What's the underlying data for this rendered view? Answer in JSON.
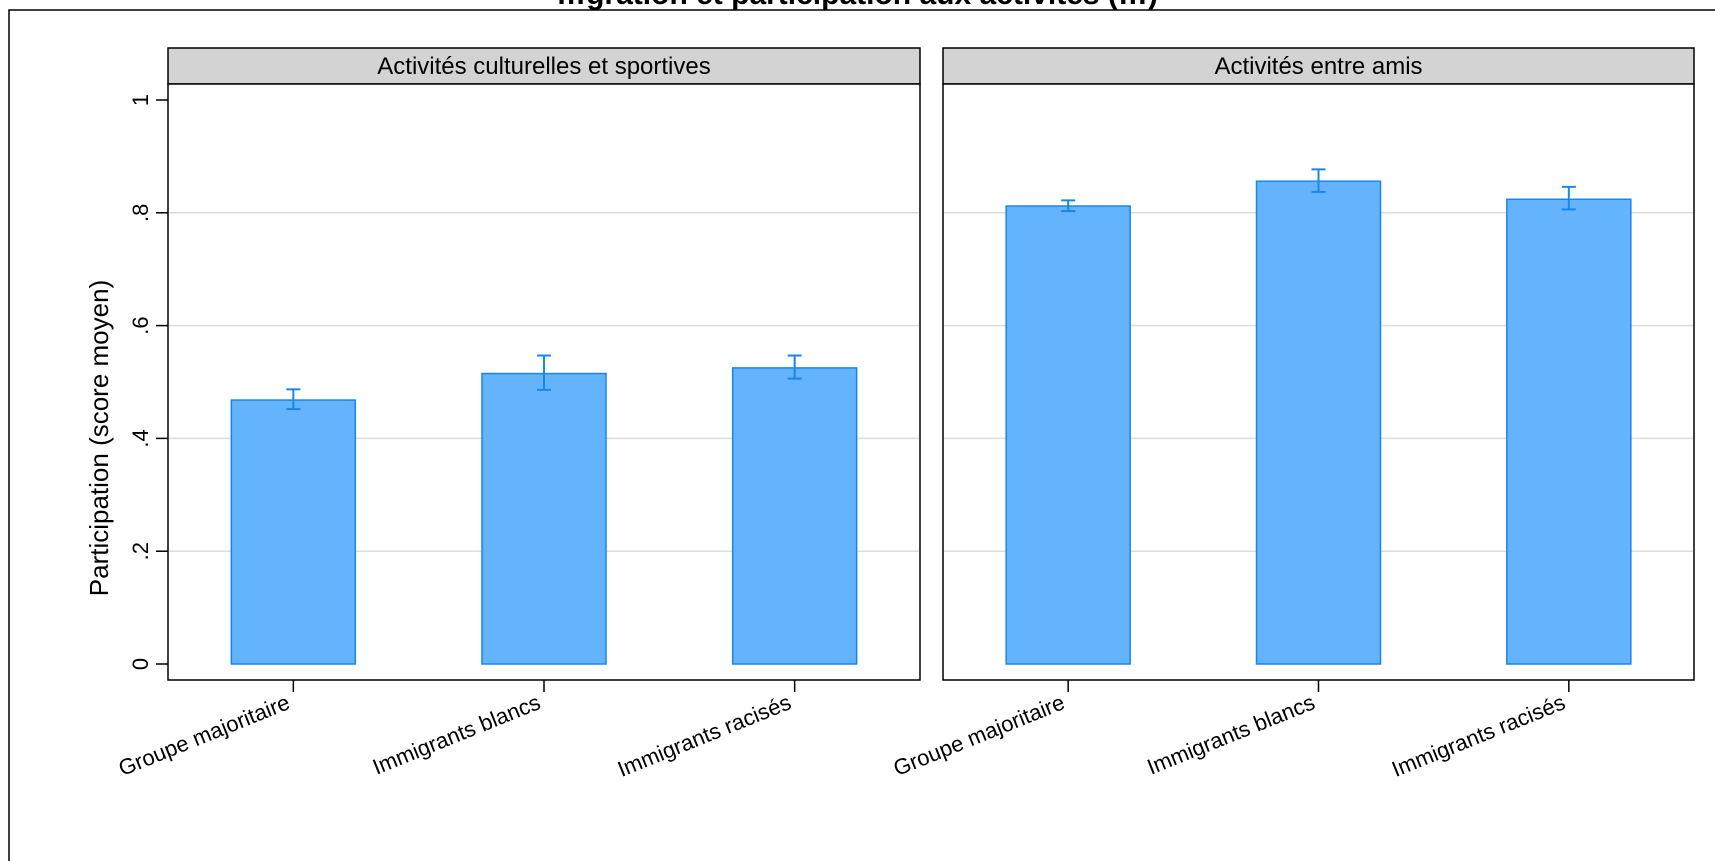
{
  "chart_data": {
    "type": "bar",
    "title": "…gration et participation aux activités (…)",
    "ylabel": "Participation (score moyen)",
    "xlabel": "",
    "ylim": [
      0,
      1.0
    ],
    "yticks": [
      0,
      0.2,
      0.4,
      0.6,
      0.8,
      1
    ],
    "ytick_labels": [
      "0",
      ".2",
      ".4",
      ".6",
      ".8",
      "1"
    ],
    "grid": true,
    "legend": "none",
    "colors": {
      "bar_fill": "#63b3fd",
      "bar_stroke": "#1a86e8",
      "error_bar": "#1a86e8",
      "strip_fill": "#d3d3d3",
      "grid": "#dcdcdc"
    },
    "categories": [
      "Groupe majoritaire",
      "Immigrants blancs",
      "Immigrants racisés"
    ],
    "panels": [
      {
        "name": "Activités culturelles et sportives",
        "values": [
          0.468,
          0.515,
          0.525
        ],
        "ci_low": [
          0.452,
          0.486,
          0.506
        ],
        "ci_high": [
          0.487,
          0.547,
          0.547
        ]
      },
      {
        "name": "Activités entre amis",
        "values": [
          0.812,
          0.856,
          0.824
        ],
        "ci_low": [
          0.803,
          0.837,
          0.806
        ],
        "ci_high": [
          0.822,
          0.877,
          0.846
        ]
      }
    ]
  }
}
